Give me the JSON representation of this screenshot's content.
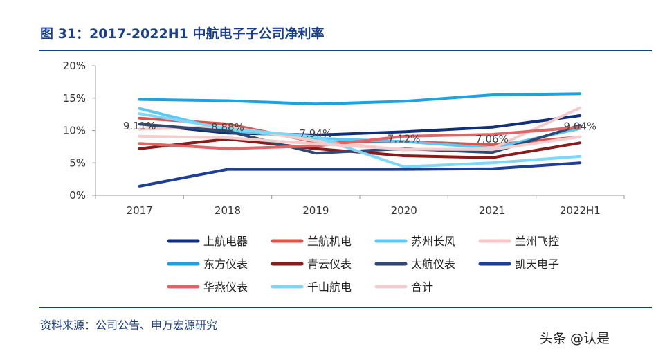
{
  "figure": {
    "title": "图 31：2017-2022H1 中航电子子公司净利率",
    "source": "资料来源：公司公告、申万宏源研究",
    "watermark": "头条 @认是"
  },
  "chart_data": {
    "type": "line",
    "x": [
      "2017",
      "2018",
      "2019",
      "2020",
      "2021",
      "2022H1"
    ],
    "ylim": [
      0,
      20
    ],
    "yticks": [
      "0%",
      "5%",
      "10%",
      "15%",
      "20%"
    ],
    "ytick_values": [
      0,
      5,
      10,
      15,
      20
    ],
    "grid": false,
    "legend_position": "bottom",
    "series": [
      {
        "name": "上航电器",
        "color": "#0f2f7a",
        "values": [
          11.0,
          9.6,
          9.3,
          9.8,
          10.5,
          12.3
        ]
      },
      {
        "name": "兰航机电",
        "color": "#d9534f",
        "values": [
          11.9,
          11.0,
          8.2,
          8.3,
          7.8,
          9.0
        ]
      },
      {
        "name": "苏州长风",
        "color": "#5cc7f0",
        "values": [
          13.4,
          10.0,
          8.8,
          8.3,
          7.3,
          10.3
        ]
      },
      {
        "name": "兰州飞控",
        "color": "#f6c9c9",
        "values": [
          10.2,
          10.6,
          8.4,
          7.0,
          7.2,
          13.5
        ]
      },
      {
        "name": "东方仪表",
        "color": "#1ba3e0",
        "values": [
          14.8,
          14.6,
          14.1,
          14.5,
          15.5,
          15.7
        ]
      },
      {
        "name": "青云仪表",
        "color": "#8b1a1a",
        "values": [
          7.2,
          8.7,
          7.2,
          6.1,
          5.8,
          8.1
        ]
      },
      {
        "name": "太航仪表",
        "color": "#2e4a72",
        "values": [
          11.0,
          9.9,
          6.5,
          7.2,
          6.6,
          10.8
        ]
      },
      {
        "name": "凯天电子",
        "color": "#1e3f99",
        "values": [
          1.4,
          4.0,
          4.0,
          4.0,
          4.1,
          5.0
        ]
      },
      {
        "name": "华燕仪表",
        "color": "#e06666",
        "values": [
          8.0,
          7.2,
          7.6,
          9.1,
          9.4,
          10.5
        ]
      },
      {
        "name": "千山航电",
        "color": "#7dd8f7",
        "values": [
          12.6,
          10.3,
          9.0,
          4.4,
          5.0,
          6.0
        ]
      },
      {
        "name": "合计",
        "color": "#f4cccc",
        "values": [
          9.11,
          8.88,
          7.94,
          7.12,
          7.06,
          9.04
        ]
      }
    ],
    "data_labels": {
      "series": "合计",
      "labels": [
        "9.11%",
        "8.88%",
        "7.94%",
        "7.12%",
        "7.06%",
        "9.04%"
      ]
    }
  }
}
